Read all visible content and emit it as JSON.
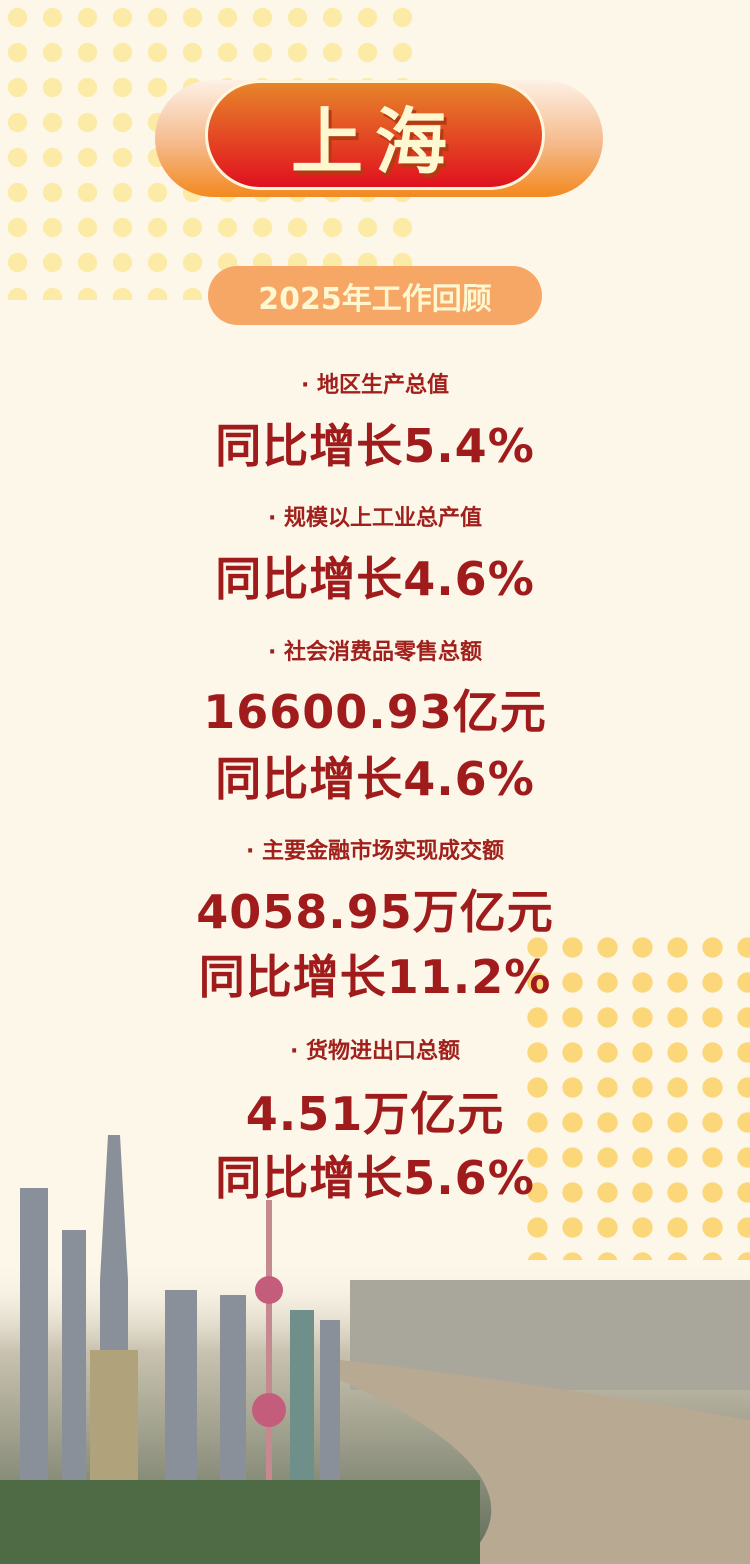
{
  "header": {
    "title": "上海",
    "subtitle": "2025年工作回顾"
  },
  "stats": [
    {
      "label": "· 地区生产总值",
      "lines": [
        "同比增长5.4%"
      ]
    },
    {
      "label": "· 规模以上工业总产值",
      "lines": [
        "同比增长4.6%"
      ]
    },
    {
      "label": "· 社会消费品零售总额",
      "lines": [
        "16600.93亿元",
        "同比增长4.6%"
      ]
    },
    {
      "label": "· 主要金融市场实现成交额",
      "lines": [
        "4058.95万亿元",
        "同比增长11.2%"
      ]
    },
    {
      "label": "· 货物进出口总额",
      "lines": [
        "4.51万亿元",
        "同比增长5.6%"
      ]
    }
  ],
  "colors": {
    "accent": "#e0111f",
    "text": "#a01c1c",
    "background": "#fdf7ea"
  }
}
